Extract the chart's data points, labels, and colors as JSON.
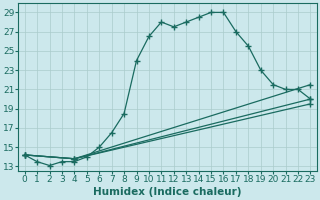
{
  "xlabel": "Humidex (Indice chaleur)",
  "bg_color": "#cce8ec",
  "line_color": "#1a6b60",
  "grid_color": "#aacccc",
  "xlim": [
    -0.5,
    23.5
  ],
  "ylim": [
    12.5,
    30
  ],
  "yticks": [
    13,
    15,
    17,
    19,
    21,
    23,
    25,
    27,
    29
  ],
  "xticks": [
    0,
    1,
    2,
    3,
    4,
    5,
    6,
    7,
    8,
    9,
    10,
    11,
    12,
    13,
    14,
    15,
    16,
    17,
    18,
    19,
    20,
    21,
    22,
    23
  ],
  "lines": [
    {
      "x": [
        0,
        1,
        2,
        3,
        4,
        5,
        6,
        7,
        8,
        9,
        10,
        11,
        12,
        13,
        14,
        15,
        16,
        17,
        18,
        19,
        20,
        21,
        22,
        23
      ],
      "y": [
        14.2,
        13.5,
        13.1,
        13.5,
        13.5,
        14.0,
        15.0,
        16.5,
        18.5,
        24.0,
        26.5,
        28.0,
        27.5,
        28.0,
        28.5,
        29.0,
        29.0,
        27.0,
        25.5,
        23.0,
        21.5,
        21.0,
        21.0,
        20.0
      ]
    },
    {
      "x": [
        0,
        4,
        23
      ],
      "y": [
        14.2,
        13.8,
        21.5
      ]
    },
    {
      "x": [
        0,
        4,
        23
      ],
      "y": [
        14.2,
        13.8,
        19.5
      ]
    },
    {
      "x": [
        0,
        4,
        23
      ],
      "y": [
        14.2,
        13.8,
        20.0
      ]
    }
  ],
  "marker": "+",
  "markersize": 4,
  "linewidth": 0.9,
  "font_size": 6.5,
  "xlabel_fontsize": 7.5
}
